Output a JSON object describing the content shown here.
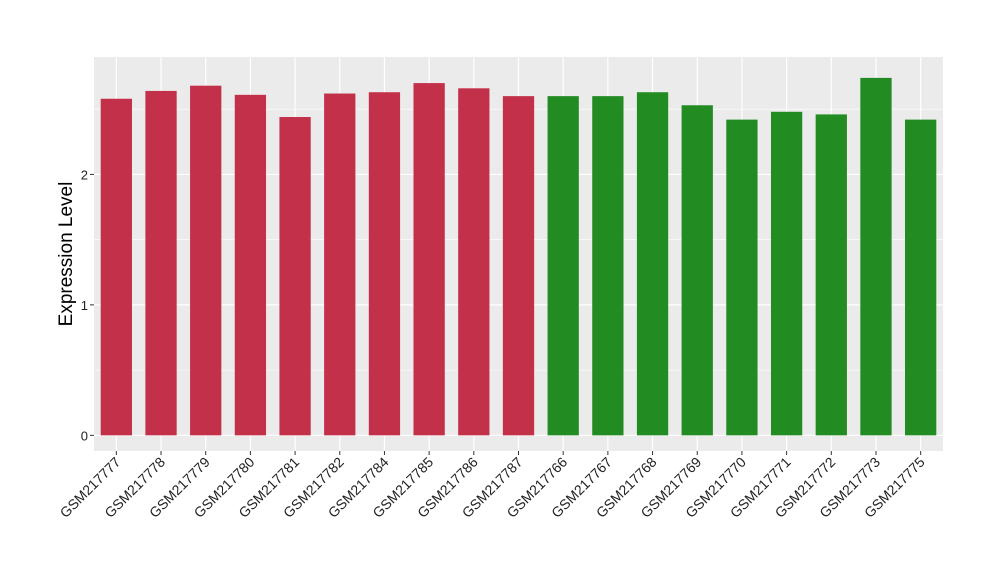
{
  "chart_data": {
    "type": "bar",
    "title": "",
    "xlabel": "",
    "ylabel": "Expression Level",
    "ylim": [
      -0.12,
      2.9
    ],
    "yticks": [
      0,
      1,
      2
    ],
    "grid": true,
    "background_color": "#ebebeb",
    "grid_color": "#ffffff",
    "categories": [
      "GSM217777",
      "GSM217778",
      "GSM217779",
      "GSM217780",
      "GSM217781",
      "GSM217782",
      "GSM217784",
      "GSM217785",
      "GSM217786",
      "GSM217787",
      "GSM217766",
      "GSM217767",
      "GSM217768",
      "GSM217769",
      "GSM217770",
      "GSM217771",
      "GSM217772",
      "GSM217773",
      "GSM217775"
    ],
    "values": [
      2.58,
      2.64,
      2.68,
      2.61,
      2.44,
      2.62,
      2.63,
      2.7,
      2.66,
      2.6,
      2.6,
      2.6,
      2.63,
      2.53,
      2.42,
      2.48,
      2.46,
      2.74,
      2.42
    ],
    "groups": [
      "red",
      "red",
      "red",
      "red",
      "red",
      "red",
      "red",
      "red",
      "red",
      "red",
      "green",
      "green",
      "green",
      "green",
      "green",
      "green",
      "green",
      "green",
      "green"
    ],
    "group_colors": {
      "red": "#c3304a",
      "green": "#228b22"
    }
  }
}
